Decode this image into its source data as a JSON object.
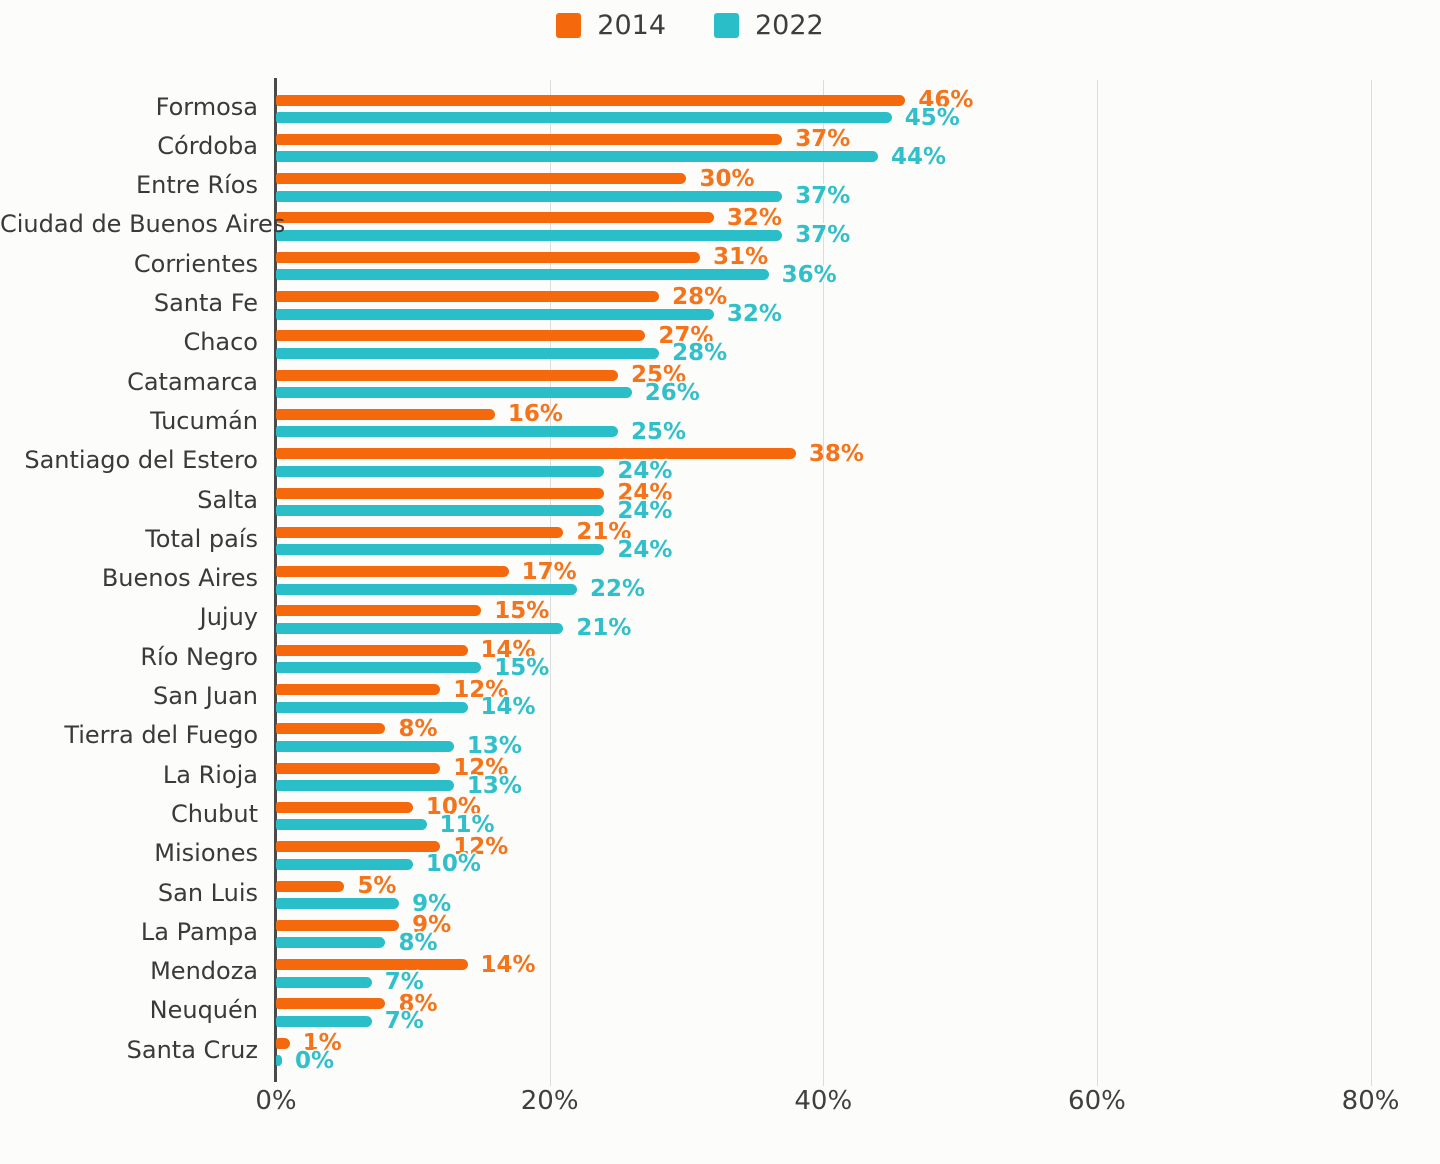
{
  "legend": [
    {
      "label": "2014",
      "color": "#f5690c"
    },
    {
      "label": "2022",
      "color": "#29bec8"
    }
  ],
  "chart_data": {
    "type": "bar",
    "orientation": "horizontal",
    "title": "",
    "xlabel": "",
    "ylabel": "",
    "value_suffix": "%",
    "xlim": [
      0,
      85
    ],
    "grid": true,
    "legend_position": "top",
    "x_ticks": [
      {
        "value": 0,
        "label": "0%"
      },
      {
        "value": 20,
        "label": "20%"
      },
      {
        "value": 40,
        "label": "40%"
      },
      {
        "value": 60,
        "label": "60%"
      },
      {
        "value": 80,
        "label": "80%"
      }
    ],
    "categories": [
      "Formosa",
      "Córdoba",
      "Entre Ríos",
      "Ciudad de Buenos Aires",
      "Corrientes",
      "Santa Fe",
      "Chaco",
      "Catamarca",
      "Tucumán",
      "Santiago del Estero",
      "Salta",
      "Total país",
      "Buenos Aires",
      "Jujuy",
      "Río Negro",
      "San Juan",
      "Tierra del Fuego",
      "La Rioja",
      "Chubut",
      "Misiones",
      "San Luis",
      "La Pampa",
      "Mendoza",
      "Neuquén",
      "Santa Cruz"
    ],
    "series": [
      {
        "name": "2014",
        "color": "#f5690c",
        "values": [
          46,
          37,
          30,
          32,
          31,
          28,
          27,
          25,
          16,
          38,
          24,
          21,
          17,
          15,
          14,
          12,
          8,
          12,
          10,
          12,
          5,
          9,
          14,
          8,
          1
        ]
      },
      {
        "name": "2022",
        "color": "#29bec8",
        "values": [
          45,
          44,
          37,
          37,
          36,
          32,
          28,
          26,
          25,
          24,
          24,
          24,
          22,
          21,
          15,
          14,
          13,
          13,
          11,
          10,
          9,
          8,
          7,
          7,
          0
        ]
      }
    ]
  }
}
